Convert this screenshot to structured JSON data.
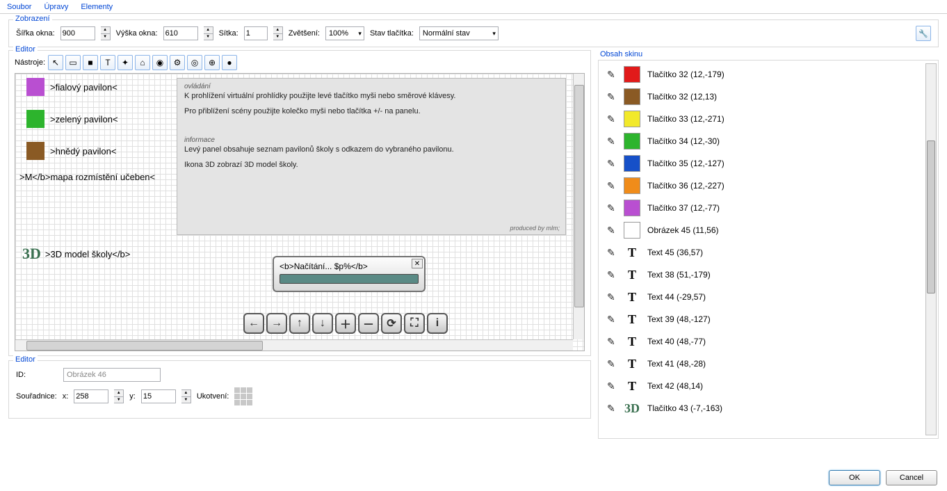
{
  "menu": {
    "file": "Soubor",
    "edit": "Úpravy",
    "elements": "Elementy"
  },
  "view_section": {
    "title": "Zobrazení",
    "width_label": "Šířka okna:",
    "width_value": "900",
    "height_label": "Výška okna:",
    "height_value": "610",
    "grid_label": "Sítka:",
    "grid_value": "1",
    "zoom_label": "Zvětšení:",
    "zoom_value": "100% ",
    "state_label": "Stav tlačítka:",
    "state_value": "Normální stav"
  },
  "editor_title": "Editor",
  "tools_label": "Nástroje:",
  "tool_icons": [
    "↖",
    "▭",
    "■",
    "T",
    "✦",
    "⌂",
    "◉",
    "⚙",
    "◎",
    "⊕",
    "●"
  ],
  "pavilions": [
    {
      "color": "#b94fd1",
      "label": ">fialový pavilon<"
    },
    {
      "color": "#2db42d",
      "label": ">zelený pavilon<"
    },
    {
      "color": "#8a5a24",
      "label": ">hnědý pavilon<"
    }
  ],
  "map_label": ">M</b>mapa rozmístění učeben<",
  "d3_label": ">3D model školy</b>",
  "info": {
    "h1": "ovládání",
    "p1": "K prohlížení virtuální prohlídky použijte levé tlačítko myši nebo směrové klávesy.",
    "p2": "Pro přiblížení scény použijte kolečko myši nebo tlačítka +/- na panelu.",
    "h2": "informace",
    "p3": "Levý panel obsahuje seznam pavilonů školy s odkazem do vybraného pavilonu.",
    "p4": "Ikona 3D zobrazí 3D model školy.",
    "footer": "produced by mlm;"
  },
  "loading": {
    "text": "<b>Načítání... $p%</b>"
  },
  "nav_buttons": [
    "←",
    "→",
    "↑",
    "↓",
    "＋",
    "－",
    "⟳",
    "⛶",
    "i"
  ],
  "props": {
    "title": "Editor",
    "id_label": "ID:",
    "id_value": "Obrázek 46",
    "coord_label": "Souřadnice:",
    "x_label": "x:",
    "x_value": "258",
    "y_label": "y:",
    "y_value": "15",
    "anchor_label": "Ukotvení:"
  },
  "skin_title": "Obsah skinu",
  "skin_items": [
    {
      "type": "color",
      "color": "#e11a1a",
      "label": "Tlačítko 32 (12,-179)"
    },
    {
      "type": "color",
      "color": "#8a5a24",
      "label": "Tlačítko 32 (12,13)"
    },
    {
      "type": "color",
      "color": "#f2e92a",
      "label": "Tlačítko 33 (12,-271)"
    },
    {
      "type": "color",
      "color": "#2db42d",
      "label": "Tlačítko 34 (12,-30)"
    },
    {
      "type": "color",
      "color": "#1650c8",
      "label": "Tlačítko 35 (12,-127)"
    },
    {
      "type": "color",
      "color": "#f08c1a",
      "label": "Tlačítko 36 (12,-227)"
    },
    {
      "type": "color",
      "color": "#b94fd1",
      "label": "Tlačítko 37 (12,-77)"
    },
    {
      "type": "color",
      "color": "#ffffff",
      "label": "Obrázek 45 (11,56)"
    },
    {
      "type": "text",
      "label": "Text 45 (36,57)"
    },
    {
      "type": "text",
      "label": "Text 38 (51,-179)"
    },
    {
      "type": "text",
      "label": "Text 44 (-29,57)"
    },
    {
      "type": "text",
      "label": "Text 39 (48,-127)"
    },
    {
      "type": "text",
      "label": "Text 40 (48,-77)"
    },
    {
      "type": "text",
      "label": "Text 41 (48,-28)"
    },
    {
      "type": "text",
      "label": "Text 42 (48,14)"
    },
    {
      "type": "3d",
      "label": "Tlačítko 43 (-7,-163)"
    }
  ],
  "dialog": {
    "ok": "OK",
    "cancel": "Cancel"
  }
}
